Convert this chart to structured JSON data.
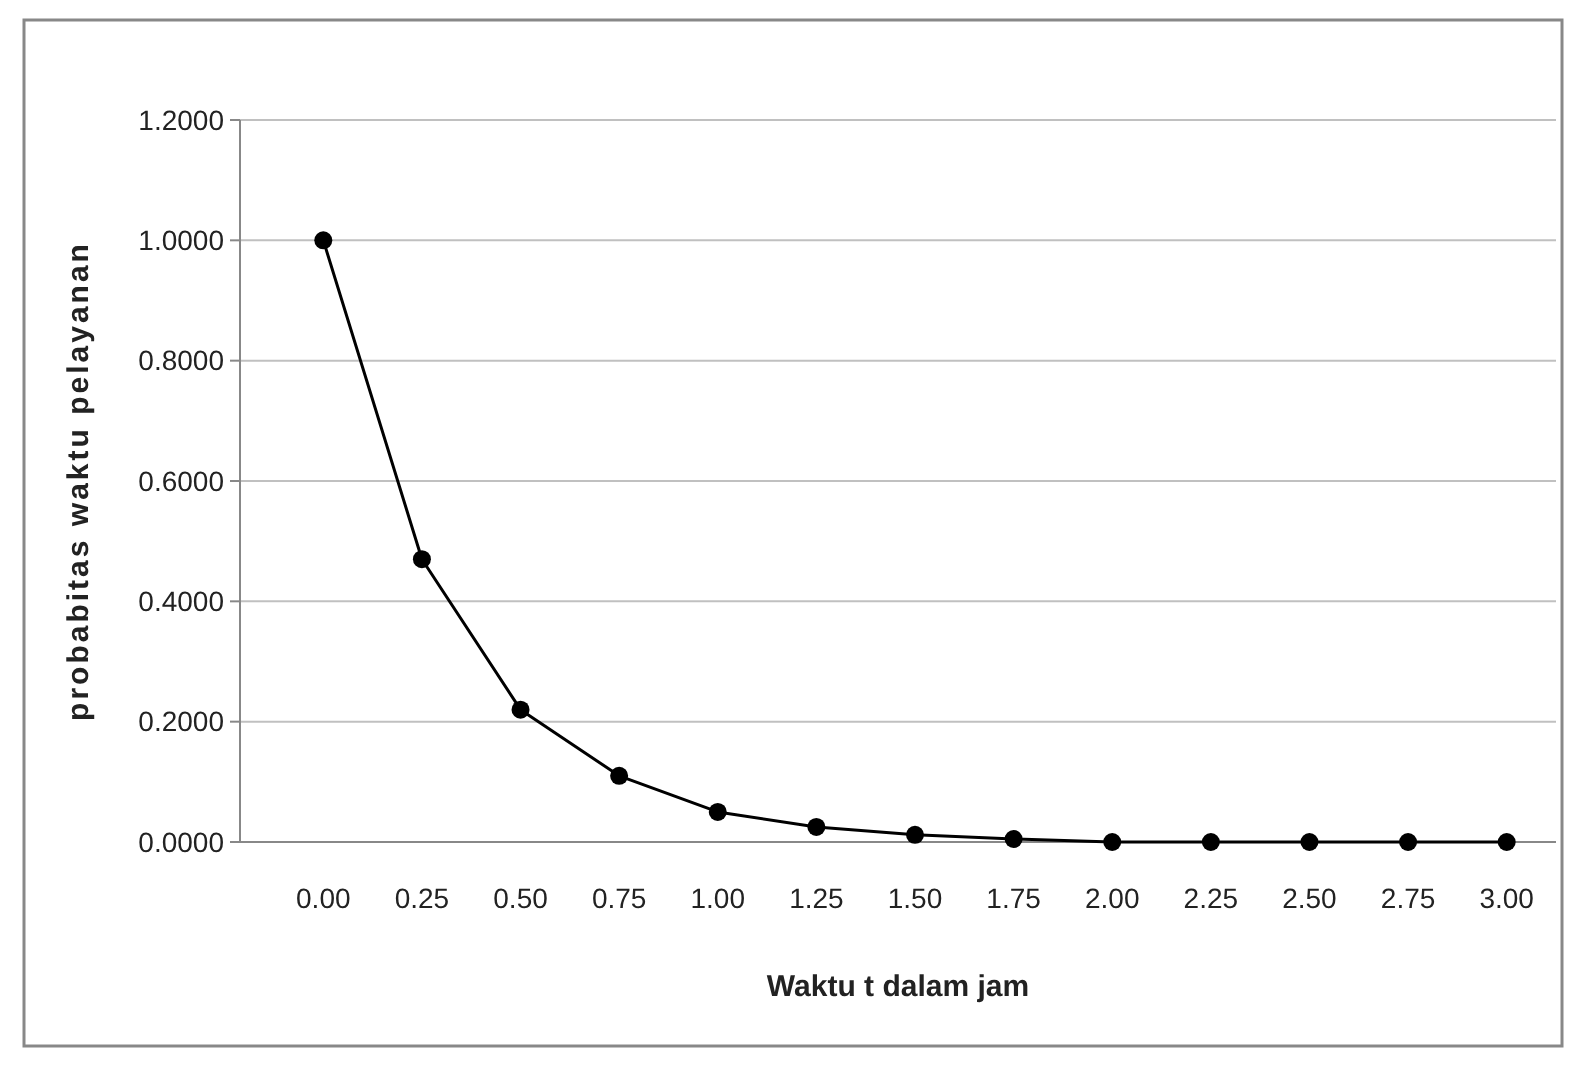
{
  "chart_data": {
    "type": "line",
    "xlabel": "Waktu t dalam jam",
    "ylabel": "probabitas waktu pelayanan",
    "categories": [
      "0.00",
      "0.25",
      "0.50",
      "0.75",
      "1.00",
      "1.25",
      "1.50",
      "1.75",
      "2.00",
      "2.25",
      "2.50",
      "2.75",
      "3.00"
    ],
    "series": [
      {
        "color": "#000000",
        "values": [
          1.0,
          0.47,
          0.22,
          0.11,
          0.05,
          0.025,
          0.012,
          0.005,
          0.0,
          0.0,
          0.0,
          0.0,
          0.0
        ]
      }
    ],
    "ylim": [
      0,
      1.2
    ],
    "yticks": [
      {
        "value": 0,
        "label": "0.0000"
      },
      {
        "value": 0.2,
        "label": "0.2000"
      },
      {
        "value": 0.4,
        "label": "0.4000"
      },
      {
        "value": 0.6,
        "label": "0.6000"
      },
      {
        "value": 0.8,
        "label": "0.8000"
      },
      {
        "value": 1.0,
        "label": "1.0000"
      },
      {
        "value": 1.2,
        "label": "1.2000"
      }
    ],
    "grid": "y",
    "marker": "circle",
    "line_style": "solid"
  }
}
